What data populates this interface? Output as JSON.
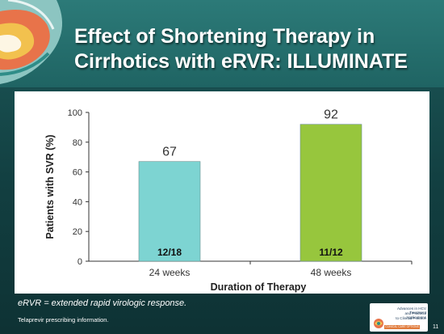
{
  "slide": {
    "title_line1": "Effect of Shortening Therapy in",
    "title_line2": "Cirrhotics with eRVR: ILLUMINATE",
    "footnote": "eRVR = extended rapid virologic response.",
    "source": "Telaprevir prescribing information.",
    "page_number": "11",
    "badge": {
      "line1": "Advances in HCV Treatment",
      "line2": "and Practical Applications",
      "line3": "to Clinical Practice",
      "tag": "CLINICAL CARE OPTIONS"
    }
  },
  "chart_data": {
    "type": "bar",
    "categories": [
      "24 weeks",
      "48 weeks"
    ],
    "values": [
      67,
      92
    ],
    "data_labels": [
      "67",
      "92"
    ],
    "inner_labels": [
      "12/18",
      "11/12"
    ],
    "colors": [
      "#7dd4d2",
      "#97c63d"
    ],
    "xlabel": "Duration of Therapy",
    "ylabel": "Patients with SVR (%)",
    "ylim": [
      0,
      100
    ],
    "yticks": [
      0,
      20,
      40,
      60,
      80,
      100
    ],
    "grid": false
  }
}
